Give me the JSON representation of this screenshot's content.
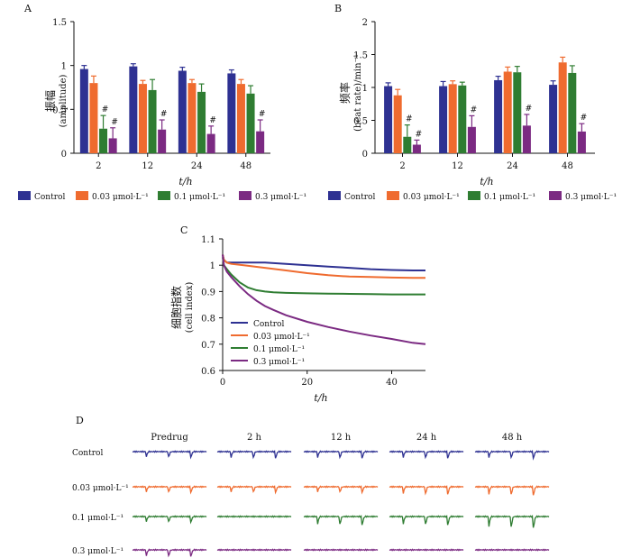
{
  "legend_labels": [
    "Control",
    "0.03 μmol·L⁻¹",
    "0.1 μmol·L⁻¹",
    "0.3 μmol·L⁻¹"
  ],
  "colors": [
    "#2e3192",
    "#ef6b2f",
    "#2f7d32",
    "#7b2a82"
  ],
  "chart_data": [
    {
      "panel": "A",
      "type": "bar",
      "title": "",
      "ylabel_cn": "振幅",
      "ylabel": "(amplitude)",
      "xlabel": "t/h",
      "categories": [
        "2",
        "12",
        "24",
        "48"
      ],
      "ylim": [
        0,
        1.5
      ],
      "yticks": [
        "0",
        "0.5",
        "1",
        "1.5"
      ],
      "sig_mark": "#",
      "series": [
        {
          "name": "Control",
          "values": [
            0.96,
            0.99,
            0.94,
            0.91
          ],
          "errors": [
            0.04,
            0.03,
            0.04,
            0.04
          ],
          "sig": [
            false,
            false,
            false,
            false
          ]
        },
        {
          "name": "0.03 μmol·L⁻¹",
          "values": [
            0.8,
            0.79,
            0.8,
            0.79
          ],
          "errors": [
            0.08,
            0.04,
            0.04,
            0.05
          ],
          "sig": [
            false,
            false,
            false,
            false
          ]
        },
        {
          "name": "0.1 μmol·L⁻¹",
          "values": [
            0.28,
            0.72,
            0.7,
            0.68
          ],
          "errors": [
            0.15,
            0.12,
            0.09,
            0.09
          ],
          "sig": [
            true,
            false,
            false,
            false
          ]
        },
        {
          "name": "0.3 μmol·L⁻¹",
          "values": [
            0.17,
            0.27,
            0.22,
            0.25
          ],
          "errors": [
            0.12,
            0.11,
            0.09,
            0.13
          ],
          "sig": [
            true,
            true,
            true,
            true
          ]
        }
      ]
    },
    {
      "panel": "B",
      "type": "bar",
      "title": "",
      "ylabel_cn": "频率",
      "ylabel": "(beat rate)/min⁻¹",
      "xlabel": "t/h",
      "categories": [
        "2",
        "12",
        "24",
        "48"
      ],
      "ylim": [
        0,
        2
      ],
      "yticks": [
        "0",
        "0.5",
        "1",
        "1.5",
        "2"
      ],
      "sig_mark": "#",
      "series": [
        {
          "name": "Control",
          "values": [
            1.02,
            1.02,
            1.11,
            1.04
          ],
          "errors": [
            0.05,
            0.07,
            0.06,
            0.06
          ],
          "sig": [
            false,
            false,
            false,
            false
          ]
        },
        {
          "name": "0.03 μmol·L⁻¹",
          "values": [
            0.88,
            1.05,
            1.24,
            1.38
          ],
          "errors": [
            0.09,
            0.05,
            0.07,
            0.08
          ],
          "sig": [
            false,
            false,
            false,
            false
          ]
        },
        {
          "name": "0.1 μmol·L⁻¹",
          "values": [
            0.25,
            1.03,
            1.23,
            1.22
          ],
          "errors": [
            0.18,
            0.05,
            0.09,
            0.11
          ],
          "sig": [
            true,
            false,
            false,
            false
          ]
        },
        {
          "name": "0.3 μmol·L⁻¹",
          "values": [
            0.13,
            0.4,
            0.42,
            0.33
          ],
          "errors": [
            0.07,
            0.17,
            0.17,
            0.12
          ],
          "sig": [
            true,
            true,
            true,
            true
          ]
        }
      ]
    },
    {
      "panel": "C",
      "type": "line",
      "ylabel_cn": "细胞指数",
      "ylabel": "(cell index)",
      "xlabel": "t/h",
      "xlim": [
        0,
        48
      ],
      "xticks": [
        "0",
        "20",
        "40"
      ],
      "ylim": [
        0.6,
        1.1
      ],
      "yticks": [
        "0.6",
        "0.7",
        "0.8",
        "0.9",
        "1",
        "1.1"
      ],
      "series": [
        {
          "name": "Control",
          "x": [
            0,
            0.3,
            1,
            2,
            5,
            10,
            15,
            20,
            25,
            30,
            35,
            40,
            45,
            48
          ],
          "y": [
            1.04,
            1.02,
            1.01,
            1.01,
            1.01,
            1.01,
            1.005,
            1.0,
            0.995,
            0.99,
            0.985,
            0.982,
            0.98,
            0.98
          ]
        },
        {
          "name": "0.03 μmol·L⁻¹",
          "x": [
            0,
            0.3,
            1,
            2,
            5,
            10,
            15,
            20,
            25,
            30,
            35,
            40,
            45,
            48
          ],
          "y": [
            1.04,
            1.02,
            1.01,
            1.005,
            1.0,
            0.99,
            0.98,
            0.97,
            0.962,
            0.957,
            0.955,
            0.953,
            0.952,
            0.952
          ]
        },
        {
          "name": "0.1 μmol·L⁻¹",
          "x": [
            0,
            0.3,
            1,
            2,
            4,
            6,
            8,
            10,
            12,
            15,
            20,
            25,
            30,
            35,
            40,
            45,
            48
          ],
          "y": [
            1.03,
            1.0,
            0.985,
            0.965,
            0.935,
            0.915,
            0.905,
            0.9,
            0.897,
            0.895,
            0.893,
            0.892,
            0.891,
            0.89,
            0.889,
            0.889,
            0.889
          ]
        },
        {
          "name": "0.3 μmol·L⁻¹",
          "x": [
            0,
            0.3,
            1,
            2,
            4,
            6,
            8,
            10,
            12,
            15,
            20,
            25,
            30,
            35,
            40,
            45,
            48
          ],
          "y": [
            1.04,
            1.0,
            0.975,
            0.955,
            0.92,
            0.89,
            0.865,
            0.845,
            0.83,
            0.81,
            0.785,
            0.765,
            0.748,
            0.733,
            0.72,
            0.705,
            0.7
          ]
        }
      ]
    },
    {
      "panel": "D",
      "type": "trace-grid",
      "columns": [
        "Predrug",
        "2 h",
        "12 h",
        "24 h",
        "48 h"
      ],
      "rows": [
        {
          "label": "Control",
          "series": 0,
          "cells": [
            {
              "amp": 6,
              "n": 3
            },
            {
              "amp": 7,
              "n": 3
            },
            {
              "amp": 7,
              "n": 3
            },
            {
              "amp": 7,
              "n": 3
            },
            {
              "amp": 7,
              "n": 3
            }
          ]
        },
        {
          "label": "0.03 μmol·L⁻¹",
          "series": 1,
          "cells": [
            {
              "amp": 6,
              "n": 3
            },
            {
              "amp": 6,
              "n": 3
            },
            {
              "amp": 6,
              "n": 3
            },
            {
              "amp": 8,
              "n": 3
            },
            {
              "amp": 9,
              "n": 3
            }
          ]
        },
        {
          "label": "0.1 μmol·L⁻¹",
          "series": 2,
          "cells": [
            {
              "amp": 6,
              "n": 3
            },
            {
              "amp": 0,
              "n": 0
            },
            {
              "amp": 9,
              "n": 3
            },
            {
              "amp": 9,
              "n": 3
            },
            {
              "amp": 12,
              "n": 3
            }
          ]
        },
        {
          "label": "0.3 μmol·L⁻¹",
          "series": 3,
          "cells": [
            {
              "amp": 7,
              "n": 3
            },
            {
              "amp": 0,
              "n": 0
            },
            {
              "amp": 0,
              "n": 0
            },
            {
              "amp": 0,
              "n": 0
            },
            {
              "amp": 0,
              "n": 0
            }
          ]
        }
      ]
    }
  ]
}
